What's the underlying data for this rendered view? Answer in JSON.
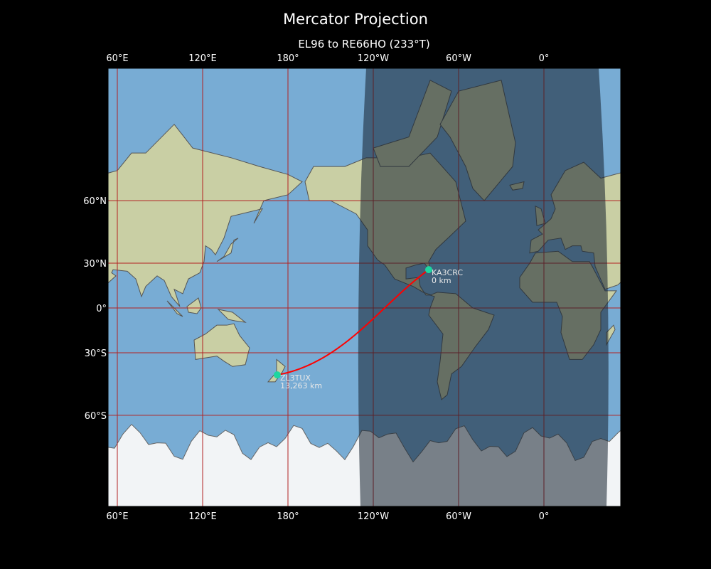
{
  "title": "Mercator Projection",
  "subtitle": "EL96 to RE66HO (233°T)",
  "map": {
    "projection": "mercator",
    "central_longitude": -126.5,
    "lat_range": [
      -80,
      84
    ],
    "night_shading": true,
    "gridlines": true,
    "lon_ticks": [
      {
        "lon": 60,
        "label": "60°E"
      },
      {
        "lon": 120,
        "label": "120°E"
      },
      {
        "lon": 180,
        "label": "180°"
      },
      {
        "lon": 240,
        "label": "120°W"
      },
      {
        "lon": 300,
        "label": "60°W"
      },
      {
        "lon": 360,
        "label": "0°"
      }
    ],
    "lat_ticks": [
      {
        "lat": 60,
        "label": "60°N"
      },
      {
        "lat": 30,
        "label": "30°N"
      },
      {
        "lat": 0,
        "label": "0°"
      },
      {
        "lat": -30,
        "label": "30°S"
      },
      {
        "lat": -60,
        "label": "60°S"
      }
    ]
  },
  "stations": [
    {
      "call": "KA3CRC",
      "distance": "0 km",
      "lat": 26,
      "lon": -81,
      "grid": "EL96"
    },
    {
      "call": "ZL3TUX",
      "distance": "13,263 km",
      "lat": -42.5,
      "lon": 172.5,
      "grid": "RE66HO"
    }
  ],
  "colors": {
    "background": "#000000",
    "ocean": "#78acd4",
    "land": "#c9cfa4",
    "ice": "#f2f4f6",
    "gridline": "#b22222",
    "path": "#ff0000",
    "marker": "#1dd6a0",
    "night": "#14202e"
  }
}
